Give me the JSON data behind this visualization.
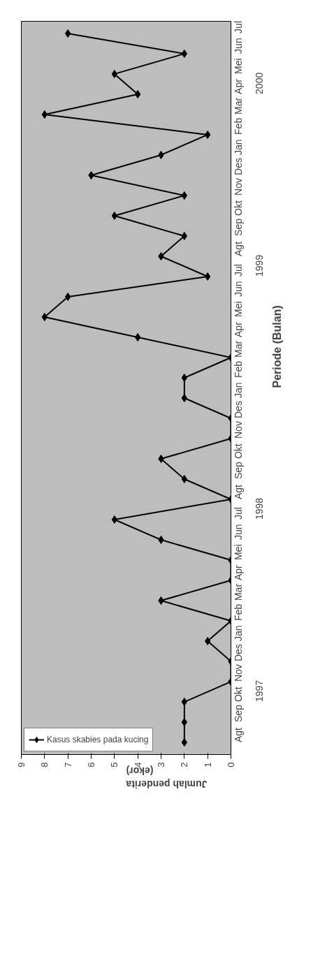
{
  "chart_data": {
    "type": "line",
    "orientation": "horizontal",
    "xlabel": "Jumlah penderita (ekor)",
    "ylabel": "Periode (Bulan)",
    "categories": [
      "Jul",
      "Jun",
      "Mei",
      "Apr",
      "Mar",
      "Feb",
      "Jan",
      "Des",
      "Nov",
      "Okt",
      "Sep",
      "Agt",
      "Jul",
      "Jun",
      "Mei",
      "Apr",
      "Mar",
      "Feb",
      "Jan",
      "Des",
      "Nov",
      "Okt",
      "Sep",
      "Agt",
      "Jul",
      "Jun",
      "Mei",
      "Apr",
      "Mar",
      "Feb",
      "Jan",
      "Des",
      "Nov",
      "Okt",
      "Sep",
      "Agt"
    ],
    "series": [
      {
        "name": "Kasus skabies pada kucing",
        "color": "#000000",
        "values": [
          7,
          2,
          5,
          4,
          8,
          1,
          3,
          6,
          2,
          5,
          2,
          3,
          1,
          7,
          8,
          4,
          0,
          2,
          2,
          0,
          0,
          3,
          2,
          0,
          5,
          3,
          0,
          0,
          3,
          0,
          1,
          0,
          0,
          2,
          2,
          2
        ]
      }
    ],
    "xlim": [
      9,
      0
    ],
    "xticks": [
      0,
      1,
      2,
      3,
      4,
      5,
      6,
      7,
      8,
      9
    ],
    "annotations": [
      "2000",
      "1999",
      "1998",
      "1997"
    ],
    "marker": "diamond",
    "line_style": "solid",
    "legend": "bottom left",
    "grid": false
  }
}
